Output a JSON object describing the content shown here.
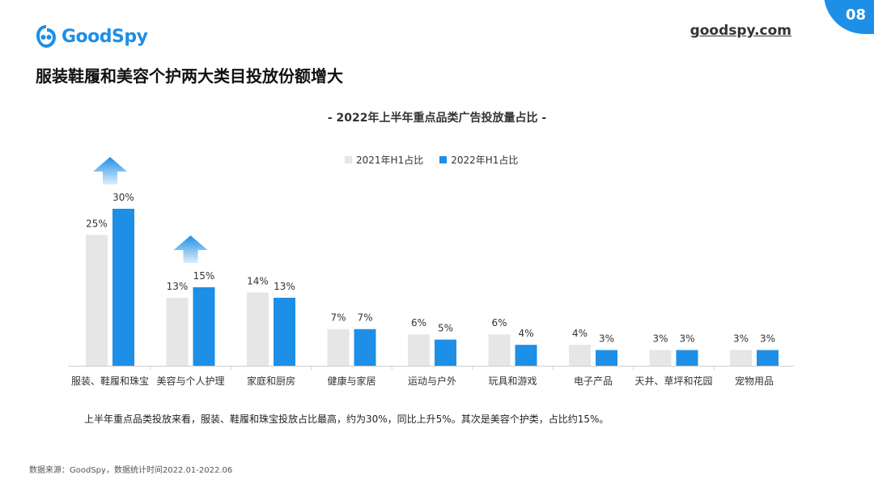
{
  "brand": {
    "name": "GoodSpy",
    "site": "goodspy.com",
    "page_number": "08",
    "accent": "#1e8fe6"
  },
  "heading": "服装鞋履和美容个护两大类目投放份额增大",
  "chart_data": {
    "type": "bar",
    "title": "- 2022年上半年重点品类广告投放量占比 -",
    "categories": [
      "服装、鞋履和珠宝",
      "美容与个人护理",
      "家庭和厨房",
      "健康与家居",
      "运动与户外",
      "玩具和游戏",
      "电子产品",
      "天井、草坪和花园",
      "宠物用品"
    ],
    "series": [
      {
        "name": "2021年H1占比",
        "color": "#e6e6e6",
        "values": [
          25,
          13,
          14,
          7,
          6,
          6,
          4,
          3,
          3
        ]
      },
      {
        "name": "2022年H1占比",
        "color": "#1e8fe6",
        "values": [
          30,
          15,
          13,
          7,
          5,
          4,
          3,
          3,
          3
        ]
      }
    ],
    "value_labels": [
      [
        "25%",
        "13%",
        "14%",
        "7%",
        "6%",
        "6%",
        "4%",
        "3%",
        "3%"
      ],
      [
        "30%",
        "15%",
        "13%",
        "7%",
        "5%",
        "4%",
        "3%",
        "3%",
        "3%"
      ]
    ],
    "increase_arrows": [
      "服装、鞋履和珠宝",
      "美容与个人护理"
    ],
    "ylim": [
      0,
      30
    ],
    "legend": "top-center",
    "grid": false
  },
  "summary": "上半年重点品类投放来看，服装、鞋履和珠宝投放占比最高，约为30%，同比上升5%。其次是美容个护类，占比约15%。",
  "source": "数据来源：GoodSpy，数据统计时间2022.01-2022.06"
}
